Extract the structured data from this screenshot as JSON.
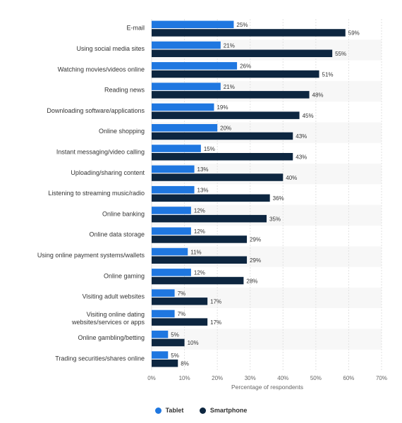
{
  "chart_data": {
    "type": "bar",
    "orientation": "horizontal",
    "categories": [
      "E-mail",
      "Using social media sites",
      "Watching movies/videos online",
      "Reading news",
      "Downloading software/applications",
      "Online shopping",
      "Instant messaging/video calling",
      "Uploading/sharing content",
      "Listening to streaming music/radio",
      "Online banking",
      "Online data storage",
      "Using online payment systems/wallets",
      "Online gaming",
      "Visiting adult websites",
      "Visiting online dating websites/services or apps",
      "Online gambling/betting",
      "Trading securities/shares online"
    ],
    "series": [
      {
        "name": "Tablet",
        "color": "#1f77e0",
        "values": [
          25,
          21,
          26,
          21,
          19,
          20,
          15,
          13,
          13,
          12,
          12,
          11,
          12,
          7,
          7,
          5,
          5
        ]
      },
      {
        "name": "Smartphone",
        "color": "#0d2640",
        "values": [
          59,
          55,
          51,
          48,
          45,
          43,
          43,
          40,
          36,
          35,
          29,
          29,
          28,
          17,
          17,
          10,
          8
        ]
      }
    ],
    "value_suffix": "%",
    "xlabel": "Percentage of respondents",
    "ylabel": "",
    "xlim": [
      0,
      70
    ],
    "ticks": [
      0,
      10,
      20,
      30,
      40,
      50,
      60,
      70
    ],
    "tick_labels": [
      "0%",
      "10%",
      "20%",
      "30%",
      "40%",
      "50%",
      "60%",
      "70%"
    ],
    "grid": true,
    "legend_position": "bottom-center"
  }
}
